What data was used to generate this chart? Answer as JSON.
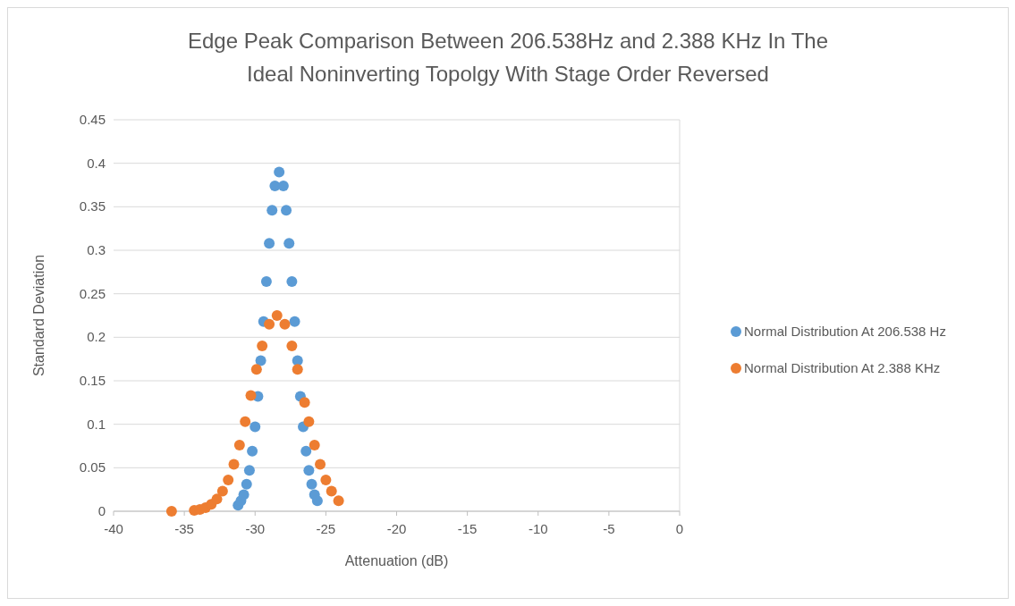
{
  "chart_data": {
    "type": "scatter",
    "title": "Edge Peak Comparison Between 206.538Hz and 2.388 KHz In The Ideal Noninverting Topolgy With Stage Order Reversed",
    "xlabel": "Attenuation (dB)",
    "ylabel": "Standard Deviation",
    "xlim": [
      -40,
      0
    ],
    "xticks": [
      -40,
      -35,
      -30,
      -25,
      -20,
      -15,
      -10,
      -5,
      0
    ],
    "ylim": [
      0,
      0.45
    ],
    "yticks": [
      0,
      0.05,
      0.1,
      0.15,
      0.2,
      0.25,
      0.3,
      0.35,
      0.4,
      0.45
    ],
    "grid": "y",
    "legend": "right",
    "marker": "circle",
    "series": [
      {
        "name": "Normal Distribution At 206.538 Hz",
        "color": "#5b9bd5",
        "x": [
          -31.2,
          -31.0,
          -30.8,
          -30.6,
          -30.4,
          -30.2,
          -30.0,
          -29.8,
          -29.6,
          -29.4,
          -29.2,
          -29.0,
          -28.8,
          -28.6,
          -28.3,
          -28.0,
          -27.8,
          -27.6,
          -27.4,
          -27.2,
          -27.0,
          -26.8,
          -26.6,
          -26.4,
          -26.2,
          -26.0,
          -25.8,
          -25.6
        ],
        "values": [
          0.007,
          0.012,
          0.019,
          0.031,
          0.047,
          0.069,
          0.097,
          0.132,
          0.173,
          0.218,
          0.264,
          0.308,
          0.346,
          0.374,
          0.39,
          0.374,
          0.346,
          0.308,
          0.264,
          0.218,
          0.173,
          0.132,
          0.097,
          0.069,
          0.047,
          0.031,
          0.019,
          0.012
        ]
      },
      {
        "name": "Normal Distribution At 2.388 KHz",
        "color": "#ed7d31",
        "x": [
          -35.9,
          -34.3,
          -33.9,
          -33.5,
          -33.1,
          -32.7,
          -32.3,
          -31.9,
          -31.5,
          -31.1,
          -30.7,
          -30.3,
          -29.9,
          -29.5,
          -29.0,
          -28.45,
          -27.9,
          -27.4,
          -27.0,
          -26.5,
          -26.2,
          -25.8,
          -25.4,
          -25.0,
          -24.6,
          -24.1
        ],
        "values": [
          0.0,
          0.001,
          0.002,
          0.004,
          0.008,
          0.014,
          0.023,
          0.036,
          0.054,
          0.076,
          0.103,
          0.133,
          0.163,
          0.19,
          0.215,
          0.225,
          0.215,
          0.19,
          0.163,
          0.125,
          0.103,
          0.076,
          0.054,
          0.036,
          0.023,
          0.012
        ]
      }
    ]
  }
}
